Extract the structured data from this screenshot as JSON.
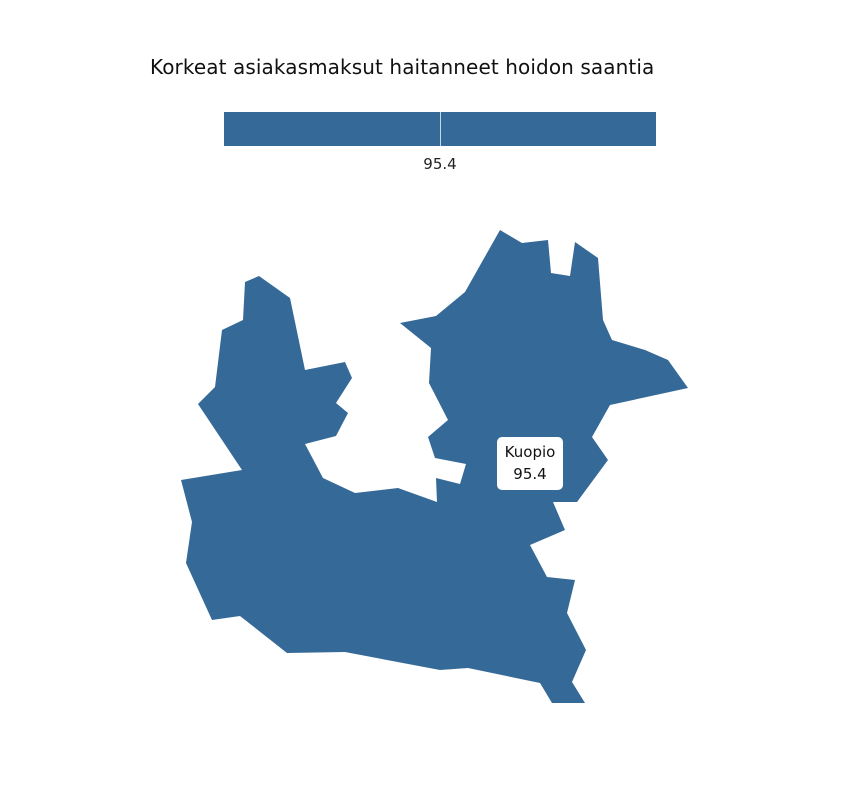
{
  "title": "Korkeat asiakasmaksut haitanneet hoidon saantia",
  "legend": {
    "value_label": "95.4",
    "color": "#356a98"
  },
  "region": {
    "name": "Kuopio",
    "value": "95.4",
    "fill": "#356a98"
  }
}
